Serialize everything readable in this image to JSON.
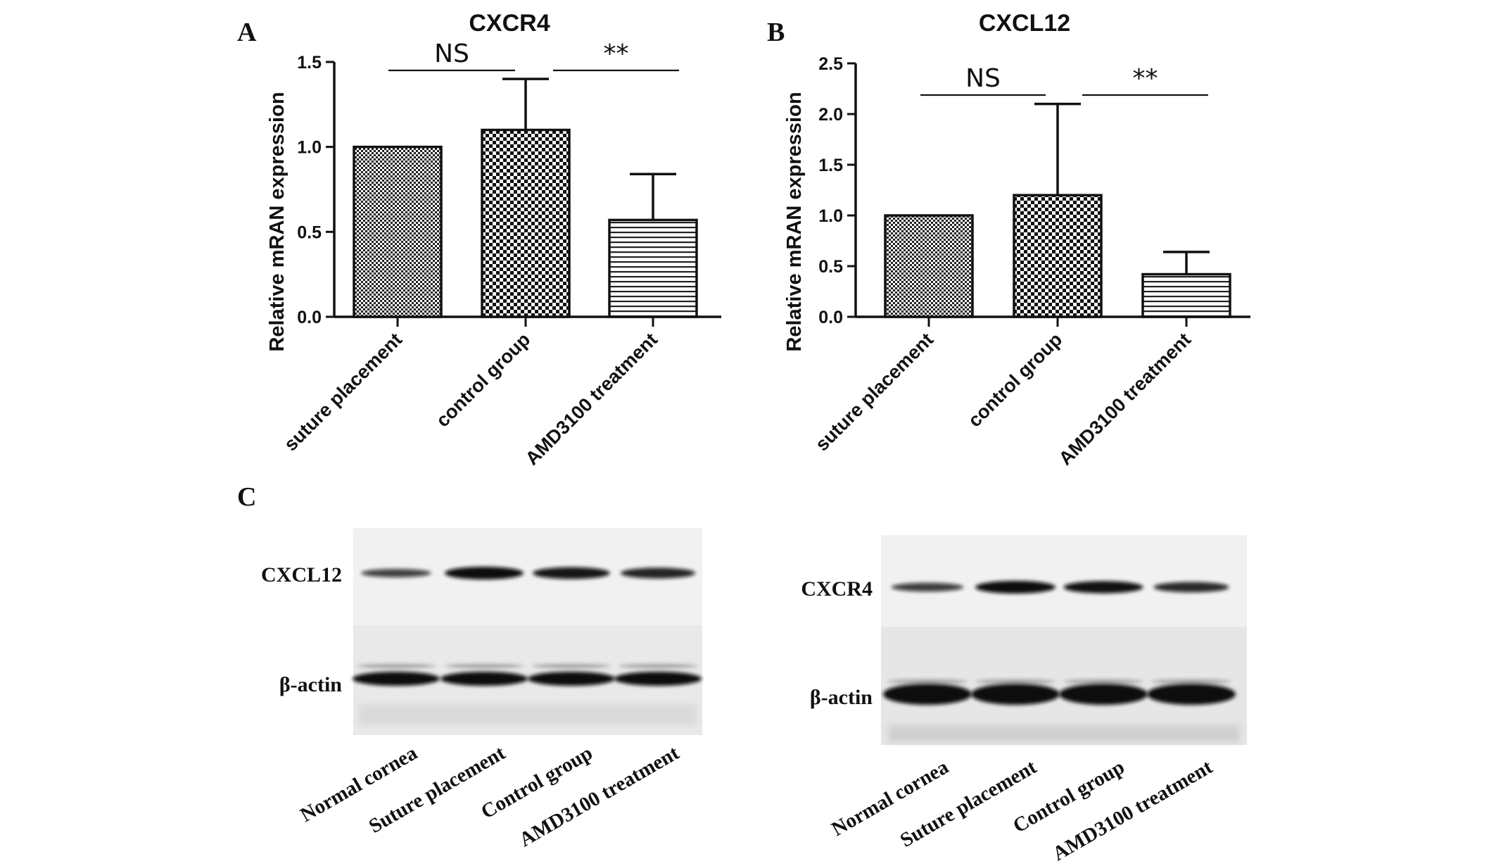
{
  "panels": {
    "a": "A",
    "b": "B",
    "c": "C"
  },
  "chart_data": [
    {
      "type": "bar",
      "title": "CXCR4",
      "ylabel": "Relative mRAN expression",
      "xlabel": "",
      "categories": [
        "suture placement",
        "control group",
        "AMD3100 treatment"
      ],
      "values": [
        1.0,
        1.1,
        0.57
      ],
      "error_upper": [
        0.0,
        0.3,
        0.27
      ],
      "ylim": [
        0,
        1.5
      ],
      "yticks": [
        "0.0",
        "0.5",
        "1.0",
        "1.5"
      ],
      "ytick_values": [
        0,
        0.5,
        1.0,
        1.5
      ],
      "bar_patterns": [
        "fine-checker",
        "coarse-checker",
        "horizontal-stripes"
      ],
      "annotations": [
        {
          "text": "NS",
          "from": 0,
          "to": 1
        },
        {
          "text": "**",
          "from": 1,
          "to": 2
        }
      ]
    },
    {
      "type": "bar",
      "title": "CXCL12",
      "ylabel": "Relative mRAN expression",
      "xlabel": "",
      "categories": [
        "suture placement",
        "control group",
        "AMD3100 treatment"
      ],
      "values": [
        1.0,
        1.2,
        0.42
      ],
      "error_upper": [
        0.0,
        0.9,
        0.22
      ],
      "ylim": [
        0,
        2.5
      ],
      "yticks": [
        "0.0",
        "0.5",
        "1.0",
        "1.5",
        "2.0",
        "2.5"
      ],
      "ytick_values": [
        0,
        0.5,
        1.0,
        1.5,
        2.0,
        2.5
      ],
      "bar_patterns": [
        "fine-checker",
        "coarse-checker",
        "horizontal-stripes"
      ],
      "annotations": [
        {
          "text": "NS",
          "from": 0,
          "to": 1
        },
        {
          "text": "**",
          "from": 1,
          "to": 2
        }
      ]
    }
  ],
  "blots": [
    {
      "protein": "CXCL12",
      "control": "β-actin",
      "lanes": [
        "Normal cornea",
        "Suture placement",
        "Control group",
        "AMD3100 treatment"
      ],
      "band_intensity": [
        0.45,
        1.0,
        0.9,
        0.75
      ]
    },
    {
      "protein": "CXCR4",
      "control": "β-actin",
      "lanes": [
        "Normal cornea",
        "Suture placement",
        "Control group",
        "AMD3100 treatment"
      ],
      "band_intensity": [
        0.5,
        1.0,
        0.95,
        0.7
      ]
    }
  ]
}
